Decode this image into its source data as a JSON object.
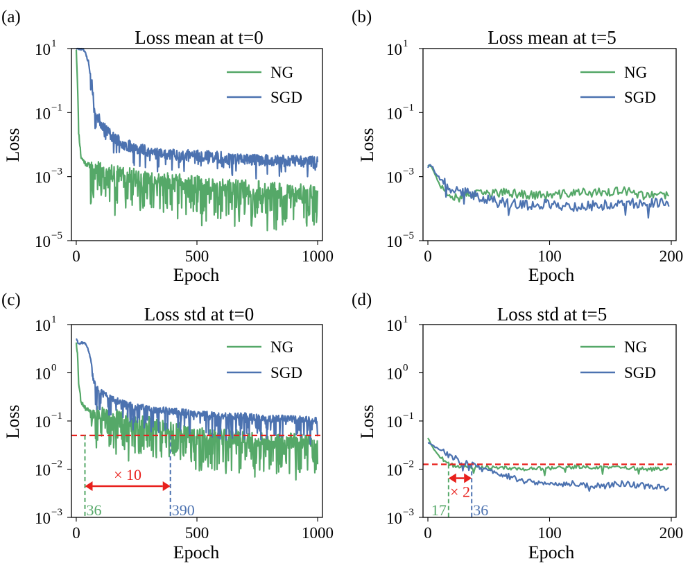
{
  "colors": {
    "ng": "#55a868",
    "sgd": "#4c72b0",
    "threshold": "#e8201c"
  },
  "chart_data": [
    {
      "type": "line",
      "panel_label": "(a)",
      "title": "Loss mean at t=0",
      "xlabel": "Epoch",
      "ylabel": "Loss",
      "yscale": "log",
      "xlim": [
        -20,
        1020
      ],
      "ylim_log10": [
        -5,
        1
      ],
      "xticks": [
        0,
        500,
        1000
      ],
      "yticks_log10": [
        1,
        -1,
        -3,
        -5
      ],
      "legend": [
        "NG",
        "SGD"
      ],
      "series": [
        {
          "name": "NG",
          "anchor_x": [
            0,
            5,
            10,
            20,
            40,
            100,
            200,
            300,
            400,
            500,
            600,
            700,
            800,
            900,
            1000
          ],
          "anchor_log10": [
            1,
            0,
            -1.6,
            -2.4,
            -2.6,
            -2.8,
            -2.95,
            -3.05,
            -3.15,
            -3.2,
            -3.3,
            -3.35,
            -3.4,
            -3.45,
            -3.5
          ],
          "noise_amp": 0.25,
          "dip_prob": 0.45,
          "dip_depth": 1.1,
          "seed": 11
        },
        {
          "name": "SGD",
          "anchor_x": [
            0,
            30,
            50,
            70,
            80,
            100,
            150,
            200,
            300,
            400,
            500,
            600,
            700,
            800,
            900,
            1000
          ],
          "anchor_log10": [
            1,
            1,
            0.6,
            -0.4,
            -1.0,
            -1.3,
            -1.75,
            -2.0,
            -2.2,
            -2.3,
            -2.35,
            -2.4,
            -2.45,
            -2.5,
            -2.5,
            -2.55
          ],
          "noise_amp": 0.18,
          "dip_prob": 0.12,
          "dip_depth": 0.5,
          "seed": 23
        }
      ]
    },
    {
      "type": "line",
      "panel_label": "(b)",
      "title": "Loss mean at t=5",
      "xlabel": "Epoch",
      "ylabel": "Loss",
      "yscale": "log",
      "xlim": [
        -4,
        204
      ],
      "ylim_log10": [
        -5,
        1
      ],
      "xticks": [
        0,
        100,
        200
      ],
      "yticks_log10": [
        1,
        -1,
        -3,
        -5
      ],
      "legend": [
        "NG",
        "SGD"
      ],
      "series": [
        {
          "name": "NG",
          "anchor_x": [
            0,
            3,
            10,
            20,
            40,
            60,
            80,
            100,
            120,
            140,
            160,
            180,
            198
          ],
          "anchor_log10": [
            -2.65,
            -2.65,
            -3.3,
            -3.6,
            -3.55,
            -3.5,
            -3.55,
            -3.6,
            -3.5,
            -3.5,
            -3.45,
            -3.6,
            -3.6
          ],
          "noise_amp": 0.14,
          "dip_prob": 0.05,
          "dip_depth": 0.5,
          "seed": 37
        },
        {
          "name": "SGD",
          "anchor_x": [
            0,
            3,
            10,
            20,
            40,
            60,
            80,
            100,
            120,
            140,
            160,
            180,
            198
          ],
          "anchor_log10": [
            -2.7,
            -2.65,
            -3.1,
            -3.4,
            -3.6,
            -3.8,
            -3.9,
            -3.85,
            -3.95,
            -3.9,
            -3.85,
            -3.8,
            -3.8
          ],
          "noise_amp": 0.16,
          "dip_prob": 0.06,
          "dip_depth": 0.5,
          "seed": 41
        }
      ]
    },
    {
      "type": "line",
      "panel_label": "(c)",
      "title": "Loss std at t=0",
      "xlabel": "Epoch",
      "ylabel": "Loss",
      "yscale": "log",
      "xlim": [
        -20,
        1020
      ],
      "ylim_log10": [
        -3,
        1
      ],
      "xticks": [
        0,
        500,
        1000
      ],
      "yticks_log10": [
        1,
        0,
        -1,
        -2,
        -3
      ],
      "legend": [
        "NG",
        "SGD"
      ],
      "threshold_log10": -1.3,
      "markers": [
        {
          "epoch": 36,
          "label": "36",
          "series": "NG"
        },
        {
          "epoch": 390,
          "label": "390",
          "series": "SGD"
        }
      ],
      "arrow_label": "× 10",
      "series": [
        {
          "name": "NG",
          "anchor_x": [
            0,
            5,
            10,
            20,
            40,
            100,
            200,
            300,
            400,
            500,
            600,
            700,
            800,
            900,
            1000
          ],
          "anchor_log10": [
            0.65,
            0.4,
            -0.2,
            -0.6,
            -0.75,
            -0.85,
            -0.95,
            -1.05,
            -1.15,
            -1.25,
            -1.3,
            -1.35,
            -1.4,
            -1.4,
            -1.45
          ],
          "noise_amp": 0.15,
          "dip_prob": 0.4,
          "dip_depth": 0.75,
          "seed": 53
        },
        {
          "name": "SGD",
          "anchor_x": [
            0,
            10,
            20,
            30,
            40,
            55,
            70,
            80,
            100,
            150,
            200,
            300,
            400,
            500,
            600,
            700,
            800,
            900,
            1000
          ],
          "anchor_log10": [
            0.7,
            0.6,
            0.62,
            0.62,
            0.6,
            0.4,
            -0.1,
            -0.3,
            -0.4,
            -0.55,
            -0.65,
            -0.75,
            -0.8,
            -0.85,
            -0.9,
            -0.9,
            -0.95,
            -0.95,
            -1.0
          ],
          "noise_amp": 0.07,
          "dip_prob": 0.25,
          "dip_depth": 0.45,
          "seed": 61
        }
      ]
    },
    {
      "type": "line",
      "panel_label": "(d)",
      "title": "Loss std at t=5",
      "xlabel": "Epoch",
      "ylabel": "Loss",
      "yscale": "log",
      "xlim": [
        -4,
        204
      ],
      "ylim_log10": [
        -3,
        1
      ],
      "xticks": [
        0,
        100,
        200
      ],
      "yticks_log10": [
        1,
        0,
        -1,
        -2,
        -3
      ],
      "legend": [
        "NG",
        "SGD"
      ],
      "threshold_log10": -1.9,
      "markers": [
        {
          "epoch": 17,
          "label": "17",
          "series": "NG"
        },
        {
          "epoch": 36,
          "label": "36",
          "series": "SGD"
        }
      ],
      "arrow_label": "× 2",
      "series": [
        {
          "name": "NG",
          "anchor_x": [
            0,
            5,
            10,
            17,
            25,
            40,
            60,
            80,
            100,
            120,
            140,
            160,
            180,
            198
          ],
          "anchor_log10": [
            -1.35,
            -1.6,
            -1.75,
            -1.9,
            -1.95,
            -1.95,
            -1.97,
            -2.0,
            -1.98,
            -1.95,
            -1.96,
            -1.97,
            -2.0,
            -2.0
          ],
          "noise_amp": 0.04,
          "dip_prob": 0.03,
          "dip_depth": 0.15,
          "seed": 71
        },
        {
          "name": "SGD",
          "anchor_x": [
            0,
            10,
            20,
            30,
            36,
            45,
            60,
            80,
            100,
            120,
            140,
            160,
            180,
            198
          ],
          "anchor_log10": [
            -1.45,
            -1.6,
            -1.75,
            -1.85,
            -1.9,
            -2.0,
            -2.1,
            -2.25,
            -2.3,
            -2.3,
            -2.35,
            -2.3,
            -2.35,
            -2.4
          ],
          "noise_amp": 0.06,
          "dip_prob": 0.04,
          "dip_depth": 0.15,
          "seed": 83
        }
      ]
    }
  ]
}
